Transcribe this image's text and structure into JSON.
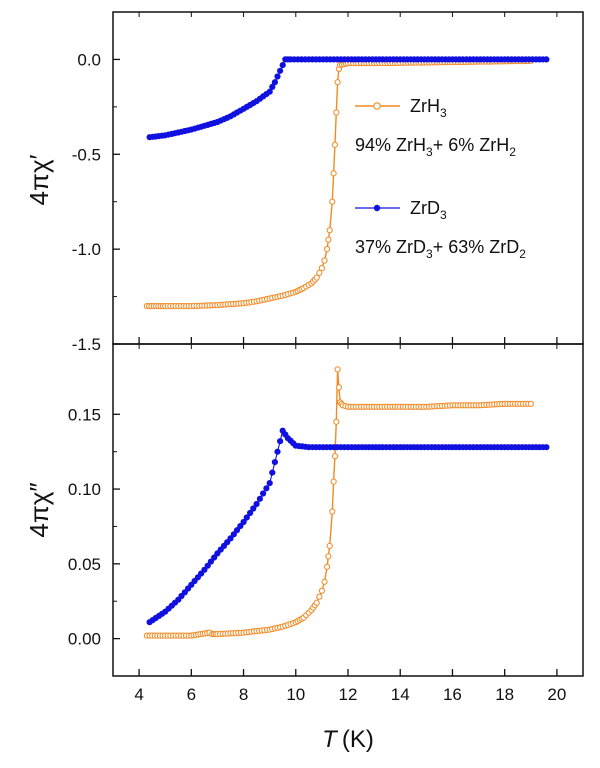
{
  "chart_data": {
    "type": "scatter",
    "xlabel": {
      "symbol": "T",
      "unit": "(K)"
    },
    "xlim": [
      3,
      21
    ],
    "xticks": [
      4,
      6,
      8,
      10,
      12,
      14,
      16,
      18,
      20
    ],
    "colors": {
      "ZrH3": "#f08a24",
      "ZrD3": "#1010e0"
    },
    "panels": [
      {
        "id": "top",
        "ylabel": {
          "base": "4πχ",
          "prime": "′"
        },
        "ylim": [
          -1.5,
          0.25
        ],
        "yticks": [
          "0.0",
          "-0.5",
          "-1.0",
          "-1.5"
        ],
        "ytick_values": [
          0.0,
          -0.5,
          -1.0,
          -1.5
        ],
        "series": [
          {
            "key": "ZrH3",
            "marker": "open-circle",
            "x": [
              4.3,
              5.0,
              6.0,
              7.0,
              8.0,
              8.5,
              9.0,
              9.5,
              10.0,
              10.3,
              10.6,
              10.8,
              11.0,
              11.1,
              11.2,
              11.3,
              11.4,
              11.45,
              11.5,
              11.55,
              11.6,
              11.65,
              11.7,
              12.0,
              13.0,
              14.0,
              15.0,
              16.0,
              17.0,
              18.0,
              19.0
            ],
            "y": [
              -1.3,
              -1.3,
              -1.3,
              -1.295,
              -1.285,
              -1.275,
              -1.26,
              -1.245,
              -1.225,
              -1.205,
              -1.18,
              -1.15,
              -1.1,
              -1.06,
              -1.0,
              -0.9,
              -0.75,
              -0.6,
              -0.45,
              -0.28,
              -0.12,
              -0.05,
              -0.03,
              -0.02,
              -0.02,
              -0.018,
              -0.016,
              -0.014,
              -0.012,
              -0.01,
              -0.008
            ]
          },
          {
            "key": "ZrD3",
            "marker": "filled-circle",
            "x": [
              4.4,
              5.0,
              5.5,
              6.0,
              6.5,
              7.0,
              7.5,
              8.0,
              8.5,
              9.0,
              9.2,
              9.4,
              9.6,
              9.8,
              10.5,
              12.0,
              14.0,
              16.0,
              18.0,
              19.6
            ],
            "y": [
              -0.41,
              -0.4,
              -0.385,
              -0.37,
              -0.35,
              -0.33,
              -0.3,
              -0.26,
              -0.22,
              -0.17,
              -0.12,
              -0.06,
              0.0,
              0.0,
              0.0,
              0.0,
              0.0,
              0.0,
              0.0,
              0.0
            ]
          }
        ]
      },
      {
        "id": "bottom",
        "ylabel": {
          "base": "4πχ",
          "prime": "″"
        },
        "ylim": [
          -0.025,
          0.197
        ],
        "yticks": [
          "0.00",
          "0.05",
          "0.10",
          "0.15"
        ],
        "ytick_values": [
          0.0,
          0.05,
          0.1,
          0.15
        ],
        "series": [
          {
            "key": "ZrH3",
            "marker": "open-circle",
            "x": [
              4.3,
              6.0,
              6.7,
              6.8,
              7.0,
              8.0,
              9.0,
              9.5,
              10.0,
              10.3,
              10.6,
              10.8,
              11.0,
              11.1,
              11.2,
              11.3,
              11.4,
              11.45,
              11.5,
              11.55,
              11.6,
              11.65,
              11.7,
              11.8,
              12.0,
              13.0,
              14.0,
              15.0,
              16.0,
              17.0,
              18.0,
              19.0
            ],
            "y": [
              0.002,
              0.002,
              0.004,
              0.003,
              0.003,
              0.004,
              0.006,
              0.008,
              0.011,
              0.014,
              0.019,
              0.024,
              0.032,
              0.038,
              0.048,
              0.062,
              0.085,
              0.105,
              0.122,
              0.145,
              0.18,
              0.168,
              0.158,
              0.156,
              0.155,
              0.155,
              0.155,
              0.155,
              0.156,
              0.156,
              0.157,
              0.157
            ]
          },
          {
            "key": "ZrD3",
            "marker": "filled-circle",
            "x": [
              4.4,
              5.0,
              5.5,
              6.0,
              6.5,
              7.0,
              7.5,
              8.0,
              8.5,
              9.0,
              9.3,
              9.5,
              9.7,
              10.0,
              10.5,
              12.0,
              14.0,
              16.0,
              18.0,
              19.6
            ],
            "y": [
              0.011,
              0.018,
              0.026,
              0.036,
              0.046,
              0.057,
              0.067,
              0.078,
              0.09,
              0.104,
              0.125,
              0.139,
              0.134,
              0.129,
              0.128,
              0.128,
              0.128,
              0.128,
              0.128,
              0.128
            ]
          }
        ]
      }
    ],
    "legend": {
      "placement": "top-panel-right",
      "entries": [
        {
          "key": "ZrH3",
          "marker": "open-circle",
          "label_main": "ZrH",
          "label_sub": "3",
          "comp": [
            "94% ZrH",
            "3",
            "+ 6% ZrH",
            "2"
          ]
        },
        {
          "key": "ZrD3",
          "marker": "filled-circle",
          "label_main": "ZrD",
          "label_sub": "3",
          "comp": [
            "37% ZrD",
            "3",
            "+ 63% ZrD",
            "2"
          ]
        }
      ]
    }
  }
}
